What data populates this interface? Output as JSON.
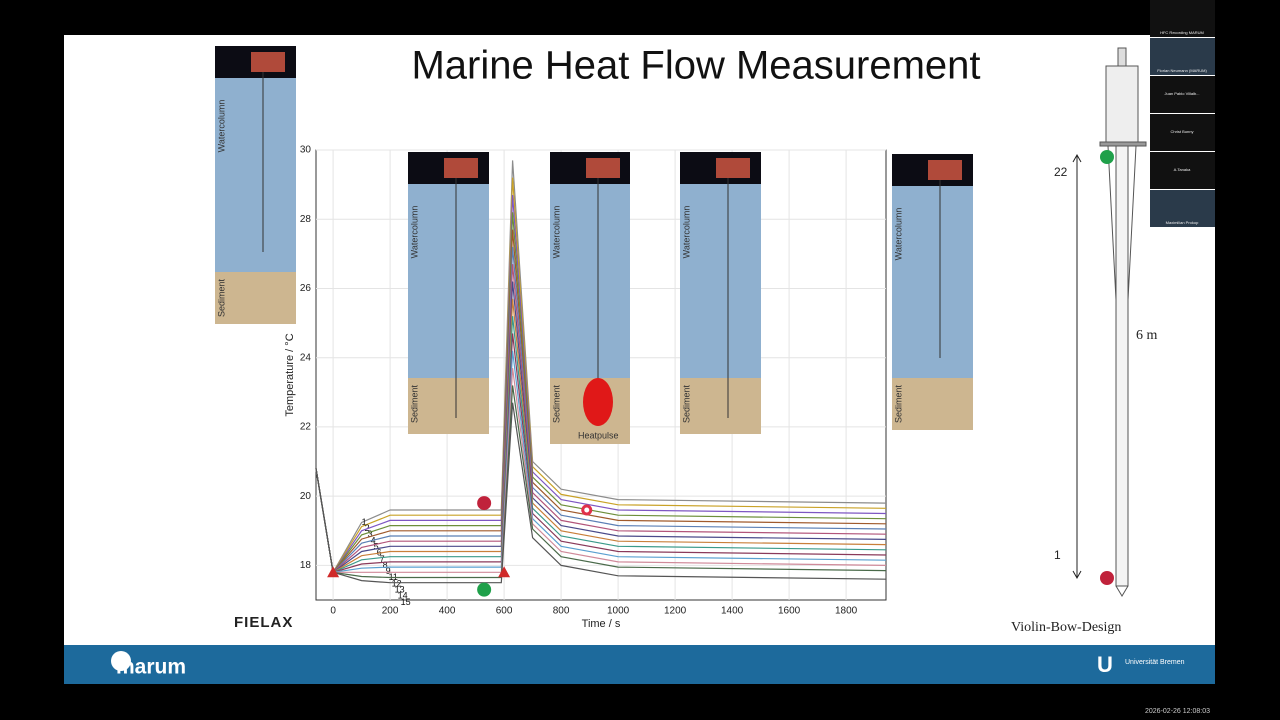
{
  "slide": {
    "title": "Marine Heat Flow Measurement",
    "logo_left": "FIELAX",
    "footer_left": "marum",
    "footer_right": "Universität Bremen",
    "probe": {
      "top_label": "22",
      "bottom_label": "1",
      "length_label": "6 m",
      "caption": "Violin-Bow-Design"
    },
    "insets": [
      {
        "water": "Watercolumn",
        "sediment": "Sediment"
      },
      {
        "water": "Watercolumn",
        "sediment": "Sediment"
      },
      {
        "water": "Watercolumn",
        "sediment": "Sediment",
        "note": "Heatpulse"
      },
      {
        "water": "Watercolumn",
        "sediment": "Sediment"
      },
      {
        "water": "Watercolumn",
        "sediment": "Sediment"
      }
    ]
  },
  "chart_data": {
    "type": "line",
    "x_label": "Time / s",
    "y_label": "Temperature / °C",
    "xlim": [
      -60,
      1940
    ],
    "ylim": [
      17,
      30
    ],
    "xticks": [
      0,
      200,
      400,
      600,
      800,
      1000,
      1200,
      1400,
      1600,
      1800
    ],
    "yticks": [
      18,
      20,
      22,
      24,
      26,
      28,
      30
    ],
    "grid": true,
    "x": [
      -60,
      0,
      100,
      200,
      590,
      630,
      700,
      800,
      1000,
      1940
    ],
    "series": [
      {
        "name": "1",
        "color": "#8c8c8c",
        "values": [
          20.8,
          17.8,
          19.24,
          19.6,
          19.6,
          29.7,
          21.0,
          20.2,
          19.9,
          19.8
        ]
      },
      {
        "name": "2",
        "color": "#c9a227",
        "values": [
          20.8,
          17.8,
          19.12,
          19.45,
          19.45,
          29.2,
          20.85,
          20.05,
          19.75,
          19.65
        ]
      },
      {
        "name": "3",
        "color": "#7e57c2",
        "values": [
          20.8,
          17.8,
          19.0,
          19.3,
          19.3,
          28.7,
          20.7,
          19.9,
          19.6,
          19.5
        ]
      },
      {
        "name": "4",
        "color": "#6d8f3a",
        "values": [
          20.8,
          17.8,
          18.88,
          19.15,
          19.15,
          28.2,
          20.55,
          19.75,
          19.45,
          19.35
        ]
      },
      {
        "name": "5",
        "color": "#a05a2c",
        "values": [
          20.8,
          17.8,
          18.76,
          19.0,
          19.0,
          27.7,
          20.4,
          19.6,
          19.3,
          19.2
        ]
      },
      {
        "name": "6",
        "color": "#5b7fb5",
        "values": [
          20.8,
          17.8,
          18.64,
          18.85,
          18.85,
          27.2,
          20.25,
          19.45,
          19.15,
          19.05
        ]
      },
      {
        "name": "7",
        "color": "#b2557a",
        "values": [
          20.8,
          17.8,
          18.52,
          18.7,
          18.7,
          26.7,
          20.1,
          19.3,
          19.0,
          18.9
        ]
      },
      {
        "name": "8",
        "color": "#4a4a8a",
        "values": [
          20.8,
          17.8,
          18.4,
          18.55,
          18.55,
          26.2,
          19.95,
          19.15,
          18.85,
          18.75
        ]
      },
      {
        "name": "9",
        "color": "#c97f3a",
        "values": [
          20.8,
          17.8,
          18.28,
          18.4,
          18.4,
          25.7,
          19.8,
          19.0,
          18.7,
          18.6
        ]
      },
      {
        "name": "11",
        "color": "#3a9a8a",
        "values": [
          20.8,
          17.8,
          18.16,
          18.25,
          18.25,
          25.2,
          19.65,
          18.85,
          18.55,
          18.45
        ]
      },
      {
        "name": "12",
        "color": "#8a3a5a",
        "values": [
          20.8,
          17.8,
          18.04,
          18.1,
          18.1,
          24.7,
          19.5,
          18.7,
          18.4,
          18.3
        ]
      },
      {
        "name": "13",
        "color": "#5aa0d0",
        "values": [
          20.8,
          17.8,
          17.92,
          17.95,
          17.95,
          24.2,
          19.35,
          18.55,
          18.25,
          18.15
        ]
      },
      {
        "name": "14",
        "color": "#d08a9a",
        "values": [
          20.8,
          17.8,
          17.8,
          17.8,
          17.8,
          23.7,
          19.2,
          18.4,
          18.1,
          18.0
        ]
      },
      {
        "name": "15",
        "color": "#4a6a4a",
        "values": [
          20.8,
          17.8,
          17.68,
          17.65,
          17.65,
          23.2,
          19.05,
          18.25,
          17.95,
          17.85
        ]
      },
      {
        "name": "",
        "color": "#555555",
        "values": [
          20.8,
          17.8,
          17.56,
          17.5,
          17.5,
          22.7,
          18.8,
          18.0,
          17.7,
          17.6
        ]
      }
    ],
    "markers": [
      {
        "shape": "circle",
        "color": "#c0223b",
        "x": 530,
        "y": 19.8
      },
      {
        "shape": "circle",
        "color": "#1fa04a",
        "x": 530,
        "y": 17.3
      },
      {
        "shape": "triangle",
        "color": "#d02a2a",
        "x": 0,
        "y": 17.8
      },
      {
        "shape": "triangle",
        "color": "#d02a2a",
        "x": 600,
        "y": 17.8
      },
      {
        "shape": "ring",
        "color": "#e0304a",
        "x": 890,
        "y": 19.6
      }
    ]
  },
  "participants": [
    "HFC Recording MARUM",
    "Florian Neumann (MARUM)",
    "Juan Pablo Villalb...",
    "Christ Bunny",
    "A.Tanaka",
    "Maximilian Prokop"
  ],
  "timestamp": "2026-02-26 12:08:03"
}
